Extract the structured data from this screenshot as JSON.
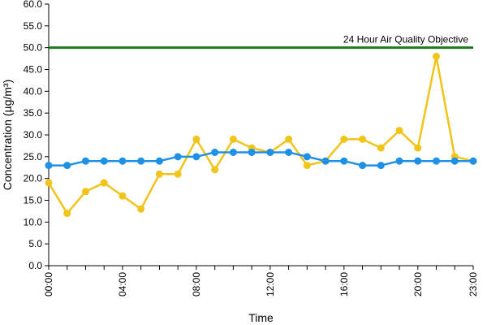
{
  "chart_data": {
    "type": "line",
    "title": "",
    "xlabel": "Time",
    "ylabel": "Concentration (µg/m³)",
    "ylim": [
      0,
      60
    ],
    "y_ticks": [
      "0.0",
      "5.0",
      "10.0",
      "15.0",
      "20.0",
      "25.0",
      "30.0",
      "35.0",
      "40.0",
      "45.0",
      "50.0",
      "55.0",
      "60.0"
    ],
    "x": [
      0,
      1,
      2,
      3,
      4,
      5,
      6,
      7,
      8,
      9,
      10,
      11,
      12,
      13,
      14,
      15,
      16,
      17,
      18,
      19,
      20,
      21,
      22,
      23
    ],
    "x_ticks": [
      {
        "x": 0,
        "label": "00:00"
      },
      {
        "x": 4,
        "label": "04:00"
      },
      {
        "x": 8,
        "label": "08:00"
      },
      {
        "x": 12,
        "label": "12:00"
      },
      {
        "x": 16,
        "label": "16:00"
      },
      {
        "x": 20,
        "label": "20:00"
      },
      {
        "x": 23,
        "label": "23:00"
      }
    ],
    "grid": false,
    "legend": "none",
    "series": [
      {
        "color": "#f0c419",
        "values": [
          19,
          12,
          17,
          19,
          16,
          13,
          21,
          21,
          29,
          22,
          29,
          27,
          26,
          29,
          23,
          24,
          29,
          29,
          27,
          31,
          27,
          48,
          25,
          24
        ]
      },
      {
        "color": "#1e90e6",
        "values": [
          23,
          23,
          24,
          24,
          24,
          24,
          24,
          25,
          25,
          26,
          26,
          26,
          26,
          26,
          25,
          24,
          24,
          23,
          23,
          24,
          24,
          24,
          24,
          24
        ]
      }
    ],
    "reference_line": {
      "y": 50,
      "label": "24 Hour Air Quality Objective",
      "color": "#1f7a1f"
    }
  }
}
